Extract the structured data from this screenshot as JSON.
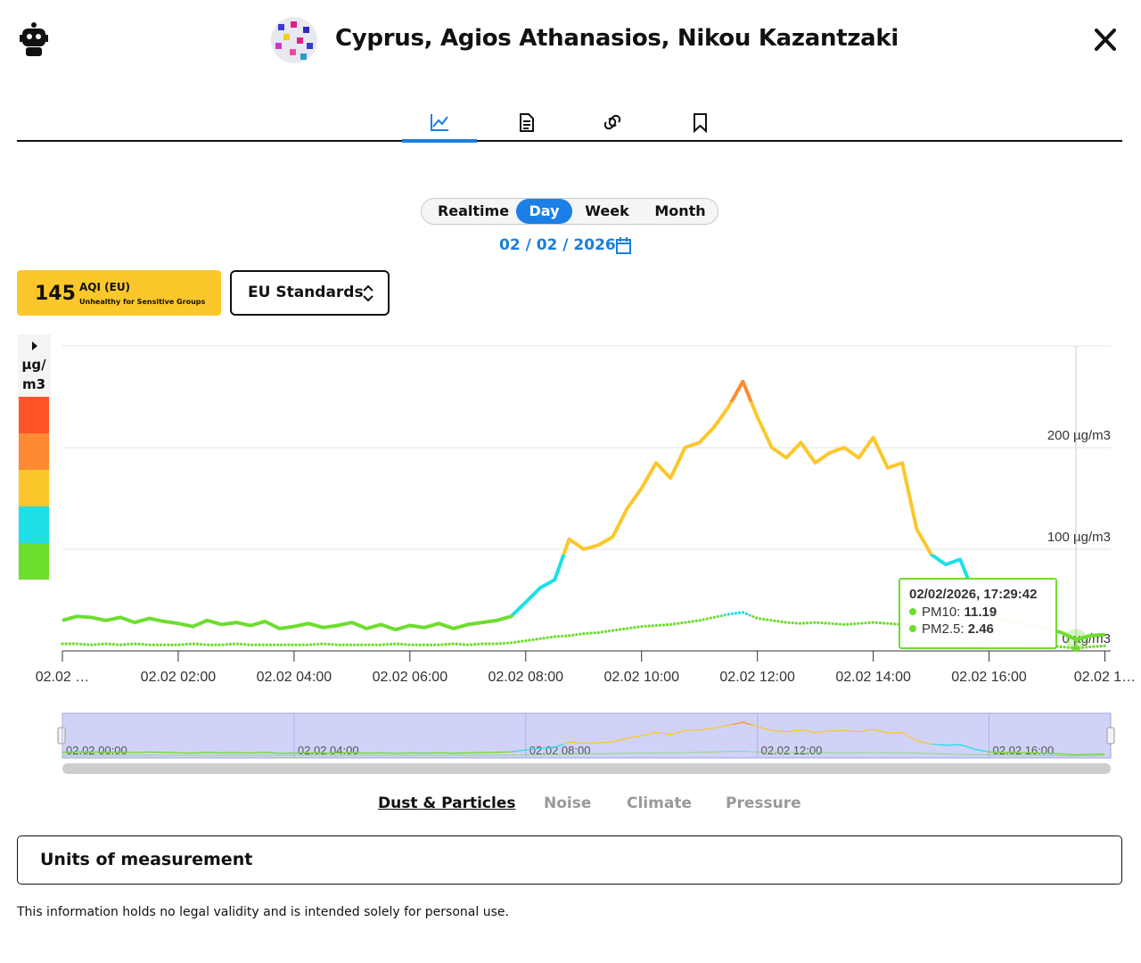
{
  "header": {
    "title": "Cyprus, Agios Athanasios, Nikou Kazantzaki"
  },
  "period": {
    "options": [
      "Realtime",
      "Day",
      "Week",
      "Month"
    ]
  },
  "date": "02 / 02 / 2026",
  "aqi": {
    "value": 145,
    "label": "AQI (EU)",
    "category": "Unhealthy for Sensitive Groups"
  },
  "standard": "EU Standards",
  "chart_data": {
    "type": "line",
    "unit_label": "µg/ m3",
    "x": [
      0,
      0.25,
      0.5,
      0.75,
      1,
      1.25,
      1.5,
      1.75,
      2,
      2.25,
      2.5,
      2.75,
      3,
      3.25,
      3.5,
      3.75,
      4,
      4.25,
      4.5,
      4.75,
      5,
      5.25,
      5.5,
      5.75,
      6,
      6.25,
      6.5,
      6.75,
      7,
      7.25,
      7.5,
      7.75,
      8,
      8.25,
      8.5,
      8.75,
      9,
      9.25,
      9.5,
      9.75,
      10,
      10.25,
      10.5,
      10.75,
      11,
      11.25,
      11.5,
      11.75,
      12,
      12.25,
      12.5,
      12.75,
      13,
      13.25,
      13.5,
      13.75,
      14,
      14.25,
      14.5,
      14.75,
      15,
      15.25,
      15.5,
      15.75,
      16,
      16.25,
      16.5,
      16.75,
      17,
      17.25,
      17.5,
      17.75,
      18
    ],
    "series": [
      {
        "style": "solid",
        "values": [
          30,
          34,
          33,
          30,
          33,
          28,
          32,
          29,
          27,
          24,
          30,
          26,
          28,
          25,
          29,
          22,
          24,
          27,
          23,
          25,
          28,
          22,
          26,
          21,
          25,
          23,
          27,
          22,
          26,
          28,
          30,
          34,
          48,
          62,
          70,
          110,
          100,
          104,
          112,
          140,
          160,
          185,
          170,
          200,
          205,
          220,
          240,
          265,
          230,
          200,
          190,
          205,
          185,
          195,
          200,
          190,
          210,
          180,
          185,
          120,
          95,
          85,
          90,
          55,
          33,
          30,
          28,
          25,
          22,
          18,
          11.19,
          15,
          16
        ]
      },
      {
        "style": "dotted",
        "values": [
          7,
          7,
          6,
          7,
          6,
          7,
          6,
          6,
          6,
          7,
          6,
          6,
          7,
          6,
          6,
          6,
          6,
          6,
          7,
          6,
          6,
          6,
          6,
          7,
          6,
          6,
          6,
          7,
          6,
          7,
          7,
          8,
          10,
          12,
          14,
          15,
          17,
          18,
          20,
          22,
          24,
          25,
          26,
          28,
          30,
          33,
          36,
          38,
          32,
          30,
          28,
          27,
          28,
          27,
          26,
          27,
          28,
          27,
          26,
          24,
          20,
          16,
          14,
          12,
          10,
          8,
          7,
          6,
          5,
          4,
          2.46,
          4,
          5
        ]
      }
    ],
    "color_scale": [
      {
        "from": 0,
        "color": "#6ddd2e"
      },
      {
        "from": 35,
        "color": "#1ee0e6"
      },
      {
        "from": 95,
        "color": "#fcc72a"
      },
      {
        "from": 245,
        "color": "#fe8a33"
      },
      {
        "from": 300,
        "color": "#fe5428"
      }
    ],
    "xlim": [
      0,
      18.1
    ],
    "xticks": [
      {
        "value": 0,
        "label": "02.02 …"
      },
      {
        "value": 2,
        "label": "02.02 02:00"
      },
      {
        "value": 4,
        "label": "02.02 04:00"
      },
      {
        "value": 6,
        "label": "02.02 06:00"
      },
      {
        "value": 8,
        "label": "02.02 08:00"
      },
      {
        "value": 10,
        "label": "02.02 10:00"
      },
      {
        "value": 12,
        "label": "02.02 12:00"
      },
      {
        "value": 14,
        "label": "02.02 14:00"
      },
      {
        "value": 16,
        "label": "02.02 16:00"
      },
      {
        "value": 18,
        "label": "02.02 1…"
      }
    ],
    "ylim": [
      0,
      300
    ],
    "yticks": [
      {
        "value": 0,
        "label": "0 µg/m3"
      },
      {
        "value": 100,
        "label": "100 µg/m3"
      },
      {
        "value": 200,
        "label": "200 µg/m3"
      }
    ],
    "grid": true,
    "tooltip": {
      "time": "02/02/2026, 17:29:42",
      "items": [
        {
          "label": "PM10:",
          "value": 11.19
        },
        {
          "label": "PM2.5:",
          "value": 2.46
        }
      ]
    }
  },
  "navigator": {
    "xticks": [
      {
        "value": 0,
        "label": "02.02 00:00"
      },
      {
        "value": 4,
        "label": "02.02 04:00"
      },
      {
        "value": 8,
        "label": "02.02 08:00"
      },
      {
        "value": 12,
        "label": "02.02 12:00"
      },
      {
        "value": 16,
        "label": "02.02 16:00"
      }
    ]
  },
  "bottom_tabs": [
    "Dust & Particles",
    "Noise",
    "Climate",
    "Pressure"
  ],
  "accordion": "Units of measurement",
  "disclaimer": "This information holds no legal validity and is intended solely for personal use."
}
